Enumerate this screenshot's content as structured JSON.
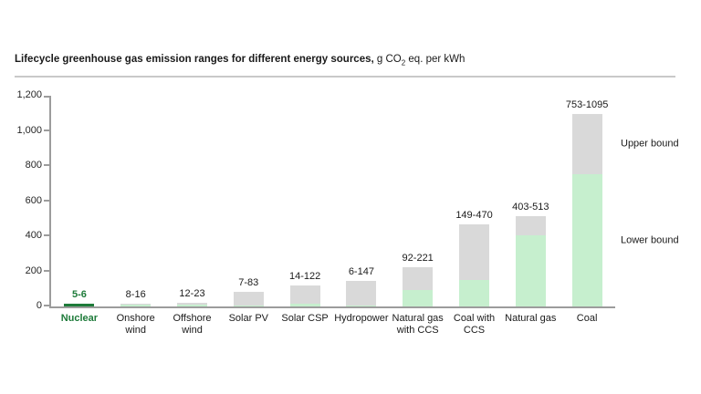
{
  "title": {
    "bold": "Lifecycle greenhouse gas emission ranges for different energy sources,",
    "unit_pre": " g CO",
    "unit_sub": "2",
    "unit_post": " eq. per kWh"
  },
  "chart_data": {
    "type": "bar",
    "subtype": "stacked-range",
    "title": "Lifecycle greenhouse gas emission ranges for different energy sources, g CO2 eq. per kWh",
    "ylabel": "g CO2 eq. per kWh",
    "ylim": [
      0,
      1200
    ],
    "ytick_interval": 200,
    "ytick_labels": [
      "0",
      "200",
      "400",
      "600",
      "800",
      "1,000",
      "1,200"
    ],
    "grid": false,
    "legend_position": "right-of-last-bar",
    "series_semantics": "green segment = 0 to lower bound, grey segment = lower bound to upper bound",
    "categories": [
      {
        "label_lines": [
          "Nuclear"
        ],
        "range_label": "5-6",
        "lower": 5,
        "upper": 6,
        "highlight": true
      },
      {
        "label_lines": [
          "Onshore",
          "wind"
        ],
        "range_label": "8-16",
        "lower": 8,
        "upper": 16,
        "highlight": false
      },
      {
        "label_lines": [
          "Offshore",
          "wind"
        ],
        "range_label": "12-23",
        "lower": 12,
        "upper": 23,
        "highlight": false
      },
      {
        "label_lines": [
          "Solar PV"
        ],
        "range_label": "7-83",
        "lower": 7,
        "upper": 83,
        "highlight": false
      },
      {
        "label_lines": [
          "Solar CSP"
        ],
        "range_label": "14-122",
        "lower": 14,
        "upper": 122,
        "highlight": false
      },
      {
        "label_lines": [
          "Hydropower"
        ],
        "range_label": "6-147",
        "lower": 6,
        "upper": 147,
        "highlight": false
      },
      {
        "label_lines": [
          "Natural gas",
          "with CCS"
        ],
        "range_label": "92-221",
        "lower": 92,
        "upper": 221,
        "highlight": false
      },
      {
        "label_lines": [
          "Coal with",
          "CCS"
        ],
        "range_label": "149-470",
        "lower": 149,
        "upper": 470,
        "highlight": false
      },
      {
        "label_lines": [
          "Natural gas"
        ],
        "range_label": "403-513",
        "lower": 403,
        "upper": 513,
        "highlight": false
      },
      {
        "label_lines": [
          "Coal"
        ],
        "range_label": "753-1095",
        "lower": 753,
        "upper": 1095,
        "highlight": false
      }
    ],
    "annotations": {
      "upper_bound_label": "Upper bound",
      "lower_bound_label": "Lower bound"
    },
    "colors": {
      "lower_fill": "#c6efce",
      "upper_fill": "#d9d9d9",
      "highlight": "#1e7b3a",
      "axis": "#9c9c9c",
      "text": "#1a1a1a"
    }
  }
}
